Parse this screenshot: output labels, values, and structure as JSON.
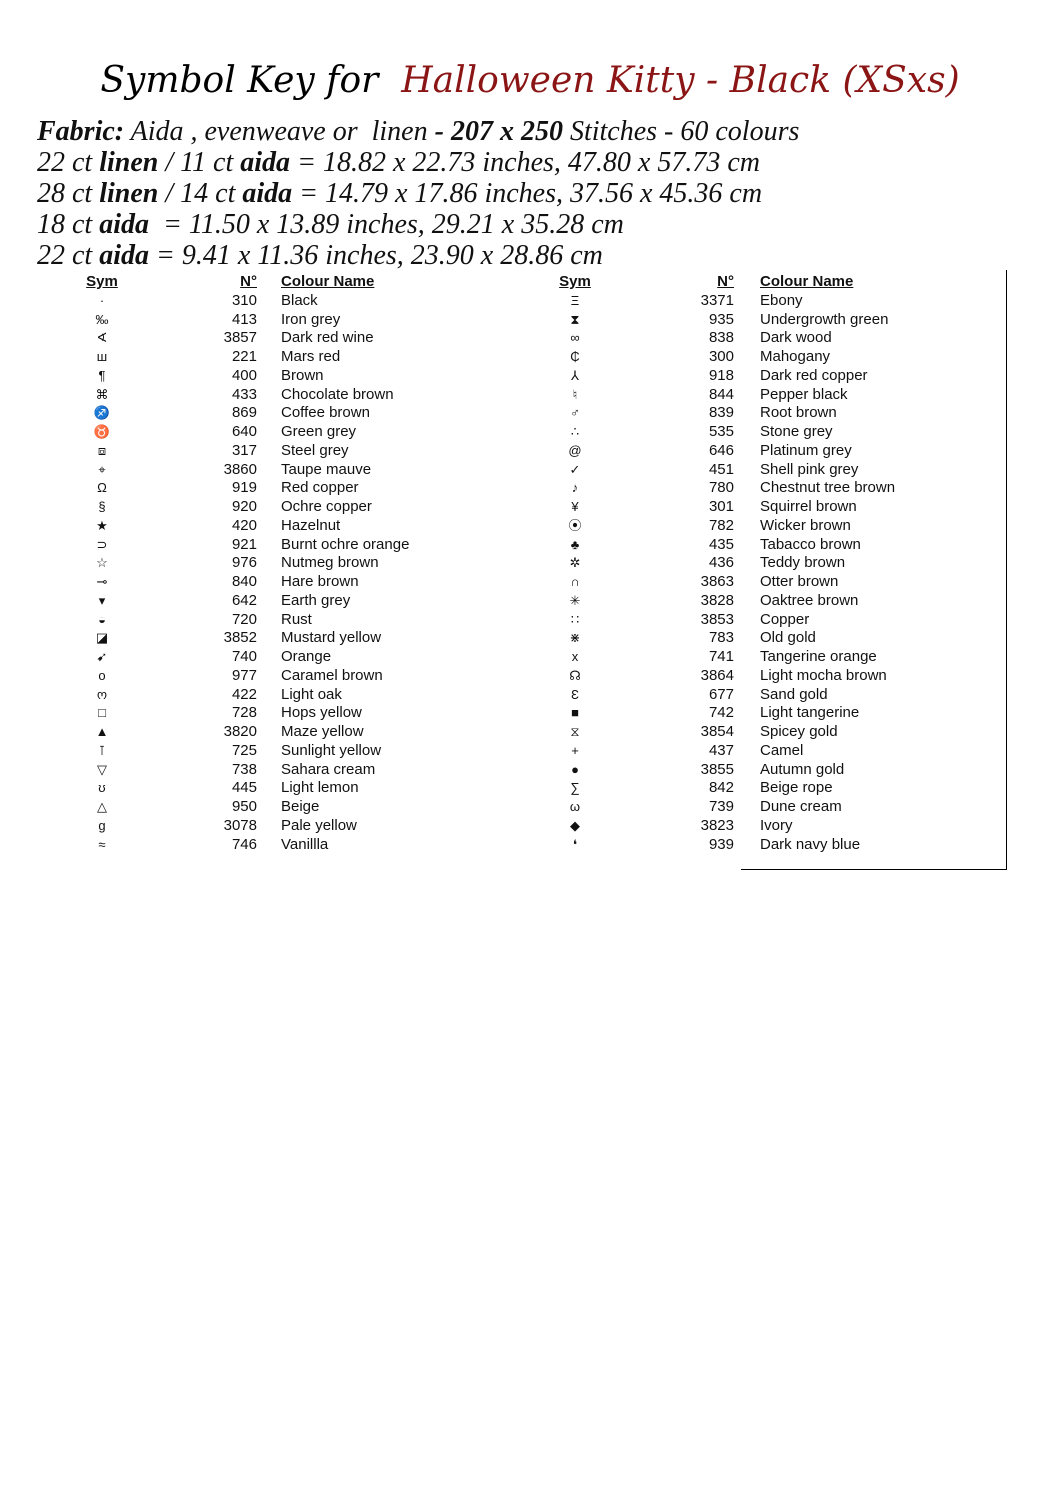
{
  "header": {
    "title": "Symbol Key for",
    "pattern": "Halloween Kitty - Black (XSxs)"
  },
  "fabric_lines": [
    [
      "Fabric:",
      " Aida , evenweave or  linen ",
      "- 207 x 250",
      " Stitches - 60 colours"
    ],
    [
      "22 ct ",
      "linen",
      " / 11 ct ",
      "aida",
      " = 18.82 x 22.73 inches, 47.80 x 57.73 cm"
    ],
    [
      "28 ct ",
      "linen",
      " / 14 ct ",
      "aida",
      " = 14.79 x 17.86 inches, 37.56 x 45.36 cm"
    ],
    [
      "18 ct ",
      "aida",
      "  = 11.50 x 13.89 inches, 29.21 x 35.28 cm"
    ],
    [
      "22 ct ",
      "aida",
      " = 9.41 x 11.36 inches, 23.90 x 28.86 cm"
    ]
  ],
  "table": {
    "headers": [
      "Sym",
      "N°",
      "Colour Name"
    ],
    "left": [
      [
        "·",
        "310",
        "Black"
      ],
      [
        "‰",
        "413",
        "Iron grey"
      ],
      [
        "∢",
        "3857",
        "Dark red wine"
      ],
      [
        "ш",
        "221",
        "Mars red"
      ],
      [
        "¶",
        "400",
        "Brown"
      ],
      [
        "⌘",
        "433",
        "Chocolate brown"
      ],
      [
        "♐",
        "869",
        "Coffee brown"
      ],
      [
        "♉",
        "640",
        "Green grey"
      ],
      [
        "⧈",
        "317",
        "Steel grey"
      ],
      [
        "⌖",
        "3860",
        "Taupe mauve"
      ],
      [
        "Ω",
        "919",
        "Red copper"
      ],
      [
        "§",
        "920",
        "Ochre copper"
      ],
      [
        "★",
        "420",
        "Hazelnut"
      ],
      [
        "⊃",
        "921",
        "Burnt ochre orange"
      ],
      [
        "☆",
        "976",
        "Nutmeg brown"
      ],
      [
        "⊸",
        "840",
        "Hare brown"
      ],
      [
        "▾",
        "642",
        "Earth grey"
      ],
      [
        "◒",
        "720",
        "Rust"
      ],
      [
        "◪",
        "3852",
        "Mustard yellow"
      ],
      [
        "➹",
        "740",
        "Orange"
      ],
      [
        "o",
        "977",
        "Caramel brown"
      ],
      [
        "ო",
        "422",
        "Light oak"
      ],
      [
        "□",
        "728",
        "Hops yellow"
      ],
      [
        "▲",
        "3820",
        "Maze yellow"
      ],
      [
        "⊺",
        "725",
        "Sunlight yellow"
      ],
      [
        "▽",
        "738",
        "Sahara cream"
      ],
      [
        "ʊ",
        "445",
        "Light lemon"
      ],
      [
        "△",
        "950",
        "Beige"
      ],
      [
        "g",
        "3078",
        "Pale yellow"
      ],
      [
        "≈",
        "746",
        "Vanillla"
      ]
    ],
    "right": [
      [
        "Ξ",
        "3371",
        "Ebony"
      ],
      [
        "⧗",
        "935",
        "Undergrowth green"
      ],
      [
        "∞",
        "838",
        "Dark wood"
      ],
      [
        "₵",
        "300",
        "Mahogany"
      ],
      [
        "⅄",
        "918",
        "Dark red copper"
      ],
      [
        "♮",
        "844",
        "Pepper black"
      ],
      [
        "♂",
        "839",
        "Root brown"
      ],
      [
        "∴",
        "535",
        "Stone grey"
      ],
      [
        "@",
        "646",
        "Platinum grey"
      ],
      [
        "✓",
        "451",
        "Shell pink grey"
      ],
      [
        "♪",
        "780",
        "Chestnut tree brown"
      ],
      [
        "¥",
        "301",
        "Squirrel brown"
      ],
      [
        "⦿",
        "782",
        "Wicker brown"
      ],
      [
        "♣",
        "435",
        "Tabacco brown"
      ],
      [
        "✲",
        "436",
        "Teddy brown"
      ],
      [
        "∩",
        "3863",
        "Otter brown"
      ],
      [
        "✳",
        "3828",
        "Oaktree brown"
      ],
      [
        "∷",
        "3853",
        "Copper"
      ],
      [
        "⋇",
        "783",
        "Old gold"
      ],
      [
        "x",
        "741",
        "Tangerine orange"
      ],
      [
        "☊",
        "3864",
        "Light mocha brown"
      ],
      [
        "Ɛ",
        "677",
        "Sand gold"
      ],
      [
        "■",
        "742",
        "Light tangerine"
      ],
      [
        "⧖",
        "3854",
        "Spicey gold"
      ],
      [
        "+",
        "437",
        "Camel"
      ],
      [
        "●",
        "3855",
        "Autumn gold"
      ],
      [
        "∑",
        "842",
        "Beige rope"
      ],
      [
        "ω",
        "739",
        "Dune cream"
      ],
      [
        "◆",
        "3823",
        "Ivory"
      ],
      [
        "❛",
        "939",
        "Dark navy blue"
      ]
    ]
  }
}
